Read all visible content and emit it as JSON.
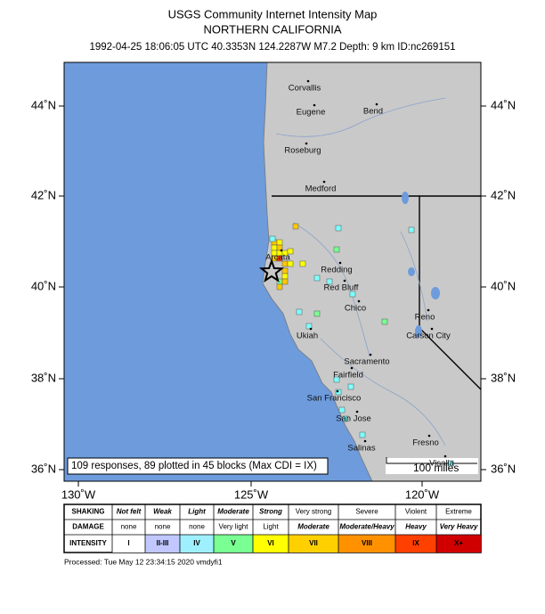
{
  "header": {
    "title": "USGS Community Internet Intensity Map",
    "region": "NORTHERN CALIFORNIA",
    "event": "1992-04-25 18:06:05 UTC 40.3353N 124.2287W M7.2 Depth: 9 km ID:nc269151"
  },
  "map": {
    "lat_labels": [
      "44˚N",
      "42˚N",
      "40˚N",
      "38˚N",
      "36˚N"
    ],
    "lon_labels": [
      "130˚W",
      "125˚W",
      "120˚W"
    ],
    "cities": [
      "Corvallis",
      "Eugene",
      "Bend",
      "Roseburg",
      "Medford",
      "Arcata",
      "Redding",
      "Red Bluff",
      "Chico",
      "Reno",
      "Carson City",
      "Ukiah",
      "Sacramento",
      "Fairfield",
      "San Francisco",
      "San Jose",
      "Salinas",
      "Fresno",
      "Visalia"
    ],
    "responses": "109 responses, 89 plotted in 45 blocks (Max CDI = IX)",
    "scale": "100 miles"
  },
  "legend": {
    "rows": [
      {
        "label": "SHAKING",
        "cells": [
          "Not felt",
          "Weak",
          "Light",
          "Moderate",
          "Strong",
          "Very strong",
          "Severe",
          "Violent",
          "Extreme"
        ]
      },
      {
        "label": "DAMAGE",
        "cells": [
          "none",
          "none",
          "none",
          "Very light",
          "Light",
          "Moderate",
          "Moderate/Heavy",
          "Heavy",
          "Very Heavy"
        ]
      },
      {
        "label": "INTENSITY",
        "cells": [
          "I",
          "II-III",
          "IV",
          "V",
          "VI",
          "VII",
          "VIII",
          "IX",
          "X+"
        ]
      }
    ]
  },
  "footer": "Processed: Tue May 12 23:34:15 2020 vmdyfi1"
}
